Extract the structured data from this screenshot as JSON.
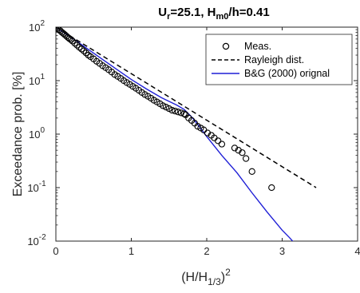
{
  "chart_data": {
    "type": "scatter",
    "title": {
      "parts": [
        "U",
        "r",
        "=25.1, H",
        "m0",
        "/h=0.41"
      ]
    },
    "xlabel": {
      "parts": [
        "(H/H",
        "1/3",
        ")",
        "2"
      ]
    },
    "ylabel": "Exceedance prob. [%]",
    "xlim": [
      0,
      4
    ],
    "ylim": [
      0.01,
      100
    ],
    "yscale": "log",
    "grid": false,
    "legend_position": "top-right",
    "x_ticks": [
      {
        "value": 0,
        "label": "0"
      },
      {
        "value": 1,
        "label": "1"
      },
      {
        "value": 2,
        "label": "2"
      },
      {
        "value": 3,
        "label": "3"
      },
      {
        "value": 4,
        "label": "4"
      }
    ],
    "y_ticks": [
      {
        "value": 100,
        "base": "10",
        "exp": "2"
      },
      {
        "value": 10,
        "base": "10",
        "exp": "1"
      },
      {
        "value": 1,
        "base": "10",
        "exp": "0"
      },
      {
        "value": 0.1,
        "base": "10",
        "exp": "-1"
      },
      {
        "value": 0.01,
        "base": "10",
        "exp": "-2"
      }
    ],
    "colors": {
      "measured": "#000000",
      "rayleigh": "#000000",
      "bg2000": "#1f1fd6"
    },
    "series": [
      {
        "name": "Meas.",
        "style": "open-circle-markers",
        "x": [
          0.0,
          0.02,
          0.04,
          0.06,
          0.08,
          0.1,
          0.12,
          0.14,
          0.16,
          0.18,
          0.2,
          0.22,
          0.25,
          0.28,
          0.31,
          0.34,
          0.37,
          0.4,
          0.43,
          0.46,
          0.5,
          0.54,
          0.58,
          0.62,
          0.66,
          0.7,
          0.74,
          0.78,
          0.82,
          0.86,
          0.9,
          0.94,
          0.98,
          1.02,
          1.06,
          1.1,
          1.14,
          1.18,
          1.22,
          1.26,
          1.3,
          1.34,
          1.38,
          1.42,
          1.46,
          1.5,
          1.54,
          1.58,
          1.62,
          1.66,
          1.7,
          1.72,
          1.76,
          1.8,
          1.84,
          1.88,
          1.92,
          1.96,
          2.01,
          2.06,
          2.1,
          2.15,
          2.2,
          2.37,
          2.42,
          2.47,
          2.52,
          2.6,
          2.86
        ],
        "y": [
          100,
          95,
          90,
          85,
          80,
          76,
          72,
          68,
          64,
          61,
          58,
          55,
          50,
          46,
          42,
          39,
          36,
          33,
          30,
          28,
          25.5,
          23,
          21,
          19,
          17.5,
          16,
          14.5,
          13,
          12,
          11,
          10,
          9.2,
          8.5,
          7.8,
          7.2,
          6.6,
          6.0,
          5.5,
          5.1,
          4.7,
          4.3,
          4.0,
          3.7,
          3.4,
          3.2,
          3.0,
          2.8,
          2.7,
          2.6,
          2.5,
          2.4,
          2.3,
          2.0,
          1.8,
          1.6,
          1.4,
          1.3,
          1.2,
          1.05,
          0.95,
          0.85,
          0.75,
          0.65,
          0.55,
          0.5,
          0.45,
          0.35,
          0.2,
          0.1
        ]
      },
      {
        "name": "Rayleigh dist.",
        "style": "dashed-line",
        "x": [
          0,
          3.45
        ],
        "y": [
          100,
          0.1
        ]
      },
      {
        "name": "B&G (2000) orignal",
        "style": "solid-line",
        "x": [
          0,
          0.2,
          0.4,
          0.6,
          0.8,
          1.0,
          1.2,
          1.4,
          1.6,
          1.7,
          1.8,
          1.9,
          2.0,
          2.2,
          2.4,
          2.6,
          2.8,
          3.0,
          3.1,
          3.2
        ],
        "y": [
          100,
          65,
          41,
          26,
          16.5,
          10.5,
          7.0,
          4.8,
          3.5,
          2.9,
          2.1,
          1.4,
          0.9,
          0.4,
          0.19,
          0.08,
          0.035,
          0.016,
          0.0115,
          0.008
        ]
      }
    ]
  }
}
